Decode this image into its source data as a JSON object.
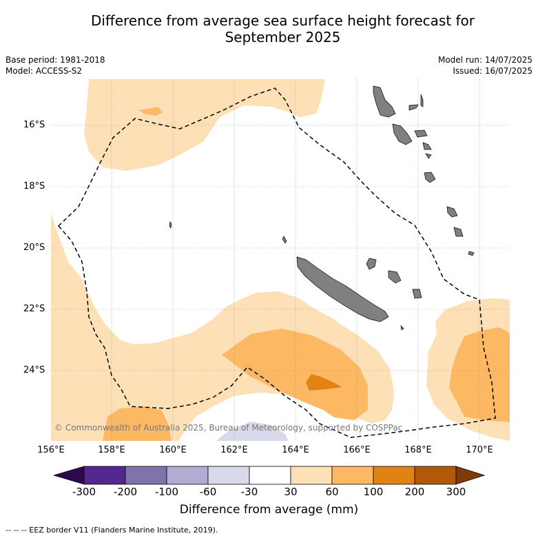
{
  "title_line1": "Difference from average sea surface height forecast for",
  "title_line2": "September 2025",
  "meta": {
    "base_period": "Base period: 1981-2018",
    "model": "Model: ACCESS-S2",
    "model_run": "Model run: 14/07/2025",
    "issued": "Issued: 16/07/2025"
  },
  "lat_labels": [
    "16°S",
    "18°S",
    "20°S",
    "22°S",
    "24°S"
  ],
  "lon_labels": [
    "156°E",
    "158°E",
    "160°E",
    "162°E",
    "164°E",
    "166°E",
    "168°E",
    "170°E"
  ],
  "copyright": "© Commonwealth of Australia 2025, Bureau of Meteorology, supported by COSPPac",
  "colorbar": {
    "label": "Difference from average (mm)",
    "ticks": [
      "-300",
      "-200",
      "-100",
      "-60",
      "-30",
      "30",
      "60",
      "100",
      "200",
      "300"
    ],
    "colors": {
      "below_-300": "#2d0a4e",
      "-300_-200": "#54278f",
      "-200_-100": "#8073ac",
      "-100_-60": "#b2abd2",
      "-60_-30": "#d8daeb",
      "-30_30": "#ffffff",
      "30_60": "#fee0b6",
      "60_100": "#fdb863",
      "100_200": "#e08214",
      "200_300": "#b35806",
      "above_300": "#7f3b08"
    }
  },
  "footnote": "-- -- -- EEZ border V11 (Flanders Marine Institute, 2019).",
  "land_color": "#808080"
}
